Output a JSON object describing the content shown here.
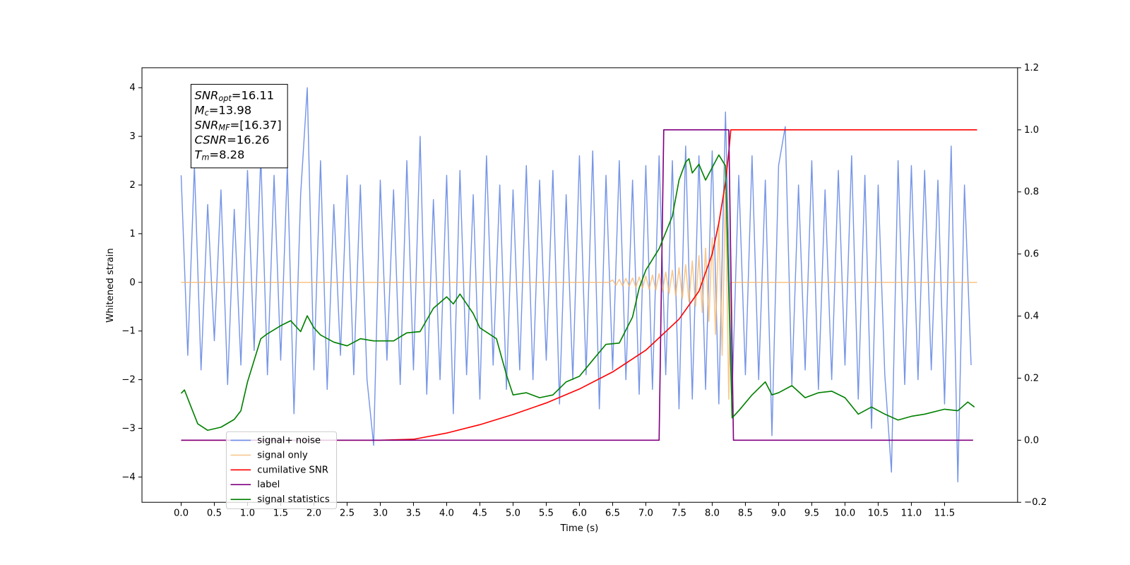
{
  "chart_data": {
    "type": "line",
    "xlabel": "Time (s)",
    "ylabel": "Whitened strain",
    "xlim": [
      -0.59,
      12.6
    ],
    "ylim": [
      -4.52,
      4.41
    ],
    "y2lim": [
      -0.2,
      1.2
    ],
    "xticks": [
      {
        "value": 0,
        "label": "0.0"
      },
      0.5,
      {
        "value": 1,
        "label": "1.0"
      },
      1.5,
      {
        "value": 2,
        "label": "2.0"
      },
      2.5,
      {
        "value": 3,
        "label": "3.0"
      },
      3.5,
      {
        "value": 4,
        "label": "4.0"
      },
      4.5,
      {
        "value": 5,
        "label": "5.0"
      },
      5.5,
      {
        "value": 6,
        "label": "6.0"
      },
      6.5,
      {
        "value": 7,
        "label": "7.0"
      },
      7.5,
      {
        "value": 8,
        "label": "8.0"
      },
      8.5,
      {
        "value": 9,
        "label": "9.0"
      },
      9.5,
      {
        "value": 10,
        "label": "10.0"
      },
      10.5,
      {
        "value": 11,
        "label": "11.0"
      },
      11.5
    ],
    "yticks": [
      {
        "value": -4,
        "label": "−4"
      },
      {
        "value": -3,
        "label": "−3"
      },
      {
        "value": -2,
        "label": "−2"
      },
      {
        "value": -1,
        "label": "−1"
      },
      0,
      1,
      2,
      3,
      4
    ],
    "y2ticks": [
      {
        "value": -0.2,
        "label": "−0.2"
      },
      {
        "value": 0,
        "label": "0.0"
      },
      0.2,
      0.4,
      0.6,
      0.8,
      {
        "value": 1,
        "label": "1.0"
      },
      1.2
    ],
    "grid": false,
    "legend_loc": "lower left",
    "annotation": [
      {
        "symbol": "SNR",
        "sub": "opt",
        "text": "=16.11"
      },
      {
        "symbol": "M",
        "sub": "c",
        "text": "=13.98"
      },
      {
        "symbol": "SNR",
        "sub": "MF",
        "text": "=[16.37]"
      },
      {
        "symbol": "CSNR",
        "sub": "",
        "text": "=16.26"
      },
      {
        "symbol": "T",
        "sub": "m",
        "text": "=8.28"
      }
    ],
    "series": [
      {
        "name": "signal+ noise",
        "color": "#6f8fe6",
        "axis": "y",
        "x": [
          0.0,
          0.1,
          0.2,
          0.3,
          0.4,
          0.5,
          0.6,
          0.7,
          0.8,
          0.9,
          1.0,
          1.1,
          1.2,
          1.3,
          1.4,
          1.5,
          1.6,
          1.7,
          1.8,
          1.9,
          2.0,
          2.1,
          2.2,
          2.3,
          2.4,
          2.5,
          2.6,
          2.7,
          2.8,
          2.9,
          3.0,
          3.1,
          3.2,
          3.3,
          3.4,
          3.5,
          3.6,
          3.7,
          3.8,
          3.9,
          4.0,
          4.1,
          4.2,
          4.3,
          4.4,
          4.5,
          4.6,
          4.7,
          4.8,
          4.9,
          5.0,
          5.1,
          5.2,
          5.3,
          5.4,
          5.5,
          5.6,
          5.7,
          5.8,
          5.9,
          6.0,
          6.1,
          6.2,
          6.3,
          6.4,
          6.5,
          6.6,
          6.7,
          6.8,
          6.9,
          7.0,
          7.1,
          7.2,
          7.3,
          7.4,
          7.5,
          7.6,
          7.7,
          7.8,
          7.9,
          8.0,
          8.1,
          8.2,
          8.3,
          8.4,
          8.5,
          8.6,
          8.7,
          8.8,
          8.9,
          9.0,
          9.1,
          9.2,
          9.3,
          9.4,
          9.5,
          9.6,
          9.7,
          9.8,
          9.9,
          10.0,
          10.1,
          10.2,
          10.3,
          10.4,
          10.5,
          10.6,
          10.7,
          10.8,
          10.9,
          11.0,
          11.1,
          11.2,
          11.3,
          11.4,
          11.5,
          11.6,
          11.7,
          11.8,
          11.9
        ],
        "values": [
          2.2,
          -1.5,
          2.4,
          -1.8,
          1.6,
          -1.2,
          1.9,
          -2.1,
          1.5,
          -1.7,
          2.3,
          -1.4,
          2.6,
          -1.9,
          2.2,
          -1.6,
          2.4,
          -2.7,
          1.8,
          4.0,
          -1.8,
          2.5,
          -2.2,
          1.6,
          -1.5,
          2.2,
          -1.9,
          2.0,
          -2.0,
          -3.35,
          2.1,
          -1.6,
          1.9,
          -2.1,
          2.5,
          -1.8,
          3.0,
          -2.3,
          1.7,
          -2.0,
          2.2,
          -2.7,
          2.3,
          -1.9,
          1.8,
          -2.4,
          2.6,
          -1.7,
          2.0,
          -2.2,
          1.9,
          -1.8,
          2.4,
          -2.0,
          2.1,
          -1.6,
          2.3,
          -2.5,
          1.8,
          -2.0,
          2.6,
          -1.9,
          2.7,
          -2.6,
          2.2,
          -1.8,
          2.5,
          -2.0,
          2.1,
          -2.3,
          2.4,
          -2.2,
          2.6,
          -1.9,
          2.5,
          -2.6,
          2.8,
          -2.4,
          2.6,
          -2.2,
          2.7,
          -2.5,
          3.5,
          -2.3,
          2.2,
          -1.9,
          2.6,
          -2.0,
          2.1,
          -3.15,
          2.4,
          3.2,
          -2.1,
          2.0,
          -1.8,
          2.5,
          -2.2,
          1.9,
          -2.0,
          2.3,
          -1.7,
          2.6,
          -2.4,
          2.2,
          -3.0,
          2.0,
          -1.9,
          -3.9,
          2.5,
          -2.1,
          2.4,
          -2.0,
          2.3,
          -1.8,
          2.1,
          -2.5,
          2.8,
          -4.1,
          2.0,
          -1.7
        ]
      },
      {
        "name": "signal only",
        "color": "#f5b56a",
        "axis": "y",
        "x": [
          0.0,
          6.45,
          6.5,
          6.55,
          6.6,
          6.65,
          6.7,
          6.75,
          6.8,
          6.85,
          6.9,
          6.95,
          7.0,
          7.05,
          7.1,
          7.15,
          7.2,
          7.25,
          7.3,
          7.35,
          7.4,
          7.45,
          7.5,
          7.55,
          7.6,
          7.65,
          7.7,
          7.75,
          7.8,
          7.85,
          7.9,
          7.95,
          8.0,
          8.05,
          8.1,
          8.15,
          8.2,
          8.25,
          8.28,
          11.99
        ],
        "values": [
          0,
          0,
          0.05,
          -0.06,
          0.06,
          -0.07,
          0.08,
          -0.08,
          0.09,
          -0.1,
          0.11,
          -0.12,
          0.13,
          -0.14,
          0.15,
          -0.16,
          0.18,
          -0.19,
          0.21,
          -0.23,
          0.25,
          -0.27,
          0.3,
          -0.33,
          0.36,
          -0.4,
          0.44,
          -0.49,
          0.55,
          -0.62,
          0.7,
          -0.8,
          0.92,
          -1.07,
          1.25,
          -1.5,
          1.85,
          -2.4,
          0,
          0
        ]
      },
      {
        "name": "cumilative SNR",
        "color": "#ff0000",
        "axis": "y2",
        "x": [
          0.0,
          3.0,
          3.5,
          4.0,
          4.5,
          5.0,
          5.5,
          6.0,
          6.5,
          7.0,
          7.5,
          7.8,
          8.0,
          8.1,
          8.2,
          8.25,
          8.28,
          11.99
        ],
        "values": [
          0,
          0,
          0.003,
          0.023,
          0.05,
          0.083,
          0.12,
          0.165,
          0.22,
          0.29,
          0.39,
          0.48,
          0.6,
          0.7,
          0.83,
          0.93,
          1.0,
          1.0
        ]
      },
      {
        "name": "label",
        "color": "#800080",
        "axis": "y2",
        "x": [
          0.0,
          7.2,
          7.27,
          8.25,
          8.32,
          11.93
        ],
        "values": [
          0,
          0,
          1.0,
          1.0,
          0,
          0
        ]
      },
      {
        "name": "signal statistics",
        "color": "#008000",
        "axis": "y2",
        "x": [
          0.0,
          0.05,
          0.15,
          0.25,
          0.4,
          0.6,
          0.8,
          0.9,
          1.0,
          1.2,
          1.3,
          1.5,
          1.65,
          1.8,
          1.9,
          2.0,
          2.1,
          2.3,
          2.5,
          2.7,
          2.9,
          3.2,
          3.4,
          3.6,
          3.8,
          4.0,
          4.1,
          4.2,
          4.4,
          4.5,
          4.75,
          4.9,
          5.0,
          5.2,
          5.4,
          5.6,
          5.8,
          6.0,
          6.2,
          6.4,
          6.6,
          6.8,
          6.9,
          7.0,
          7.2,
          7.4,
          7.5,
          7.6,
          7.65,
          7.7,
          7.8,
          7.9,
          8.1,
          8.2,
          8.3,
          8.4,
          8.6,
          8.8,
          8.9,
          9.0,
          9.2,
          9.4,
          9.6,
          9.8,
          10.0,
          10.2,
          10.4,
          10.6,
          10.8,
          11.0,
          11.2,
          11.5,
          11.7,
          11.85,
          11.95
        ],
        "values": [
          0.151,
          0.162,
          0.107,
          0.053,
          0.032,
          0.042,
          0.067,
          0.095,
          0.188,
          0.327,
          0.343,
          0.369,
          0.385,
          0.35,
          0.401,
          0.362,
          0.339,
          0.316,
          0.304,
          0.327,
          0.32,
          0.32,
          0.346,
          0.35,
          0.425,
          0.462,
          0.439,
          0.471,
          0.408,
          0.362,
          0.327,
          0.211,
          0.146,
          0.153,
          0.137,
          0.146,
          0.188,
          0.206,
          0.258,
          0.309,
          0.313,
          0.397,
          0.49,
          0.548,
          0.617,
          0.722,
          0.838,
          0.896,
          0.907,
          0.861,
          0.889,
          0.838,
          0.919,
          0.884,
          0.072,
          0.095,
          0.146,
          0.188,
          0.146,
          0.153,
          0.176,
          0.137,
          0.153,
          0.158,
          0.137,
          0.084,
          0.107,
          0.084,
          0.065,
          0.077,
          0.084,
          0.1,
          0.095,
          0.123,
          0.107
        ]
      }
    ]
  }
}
